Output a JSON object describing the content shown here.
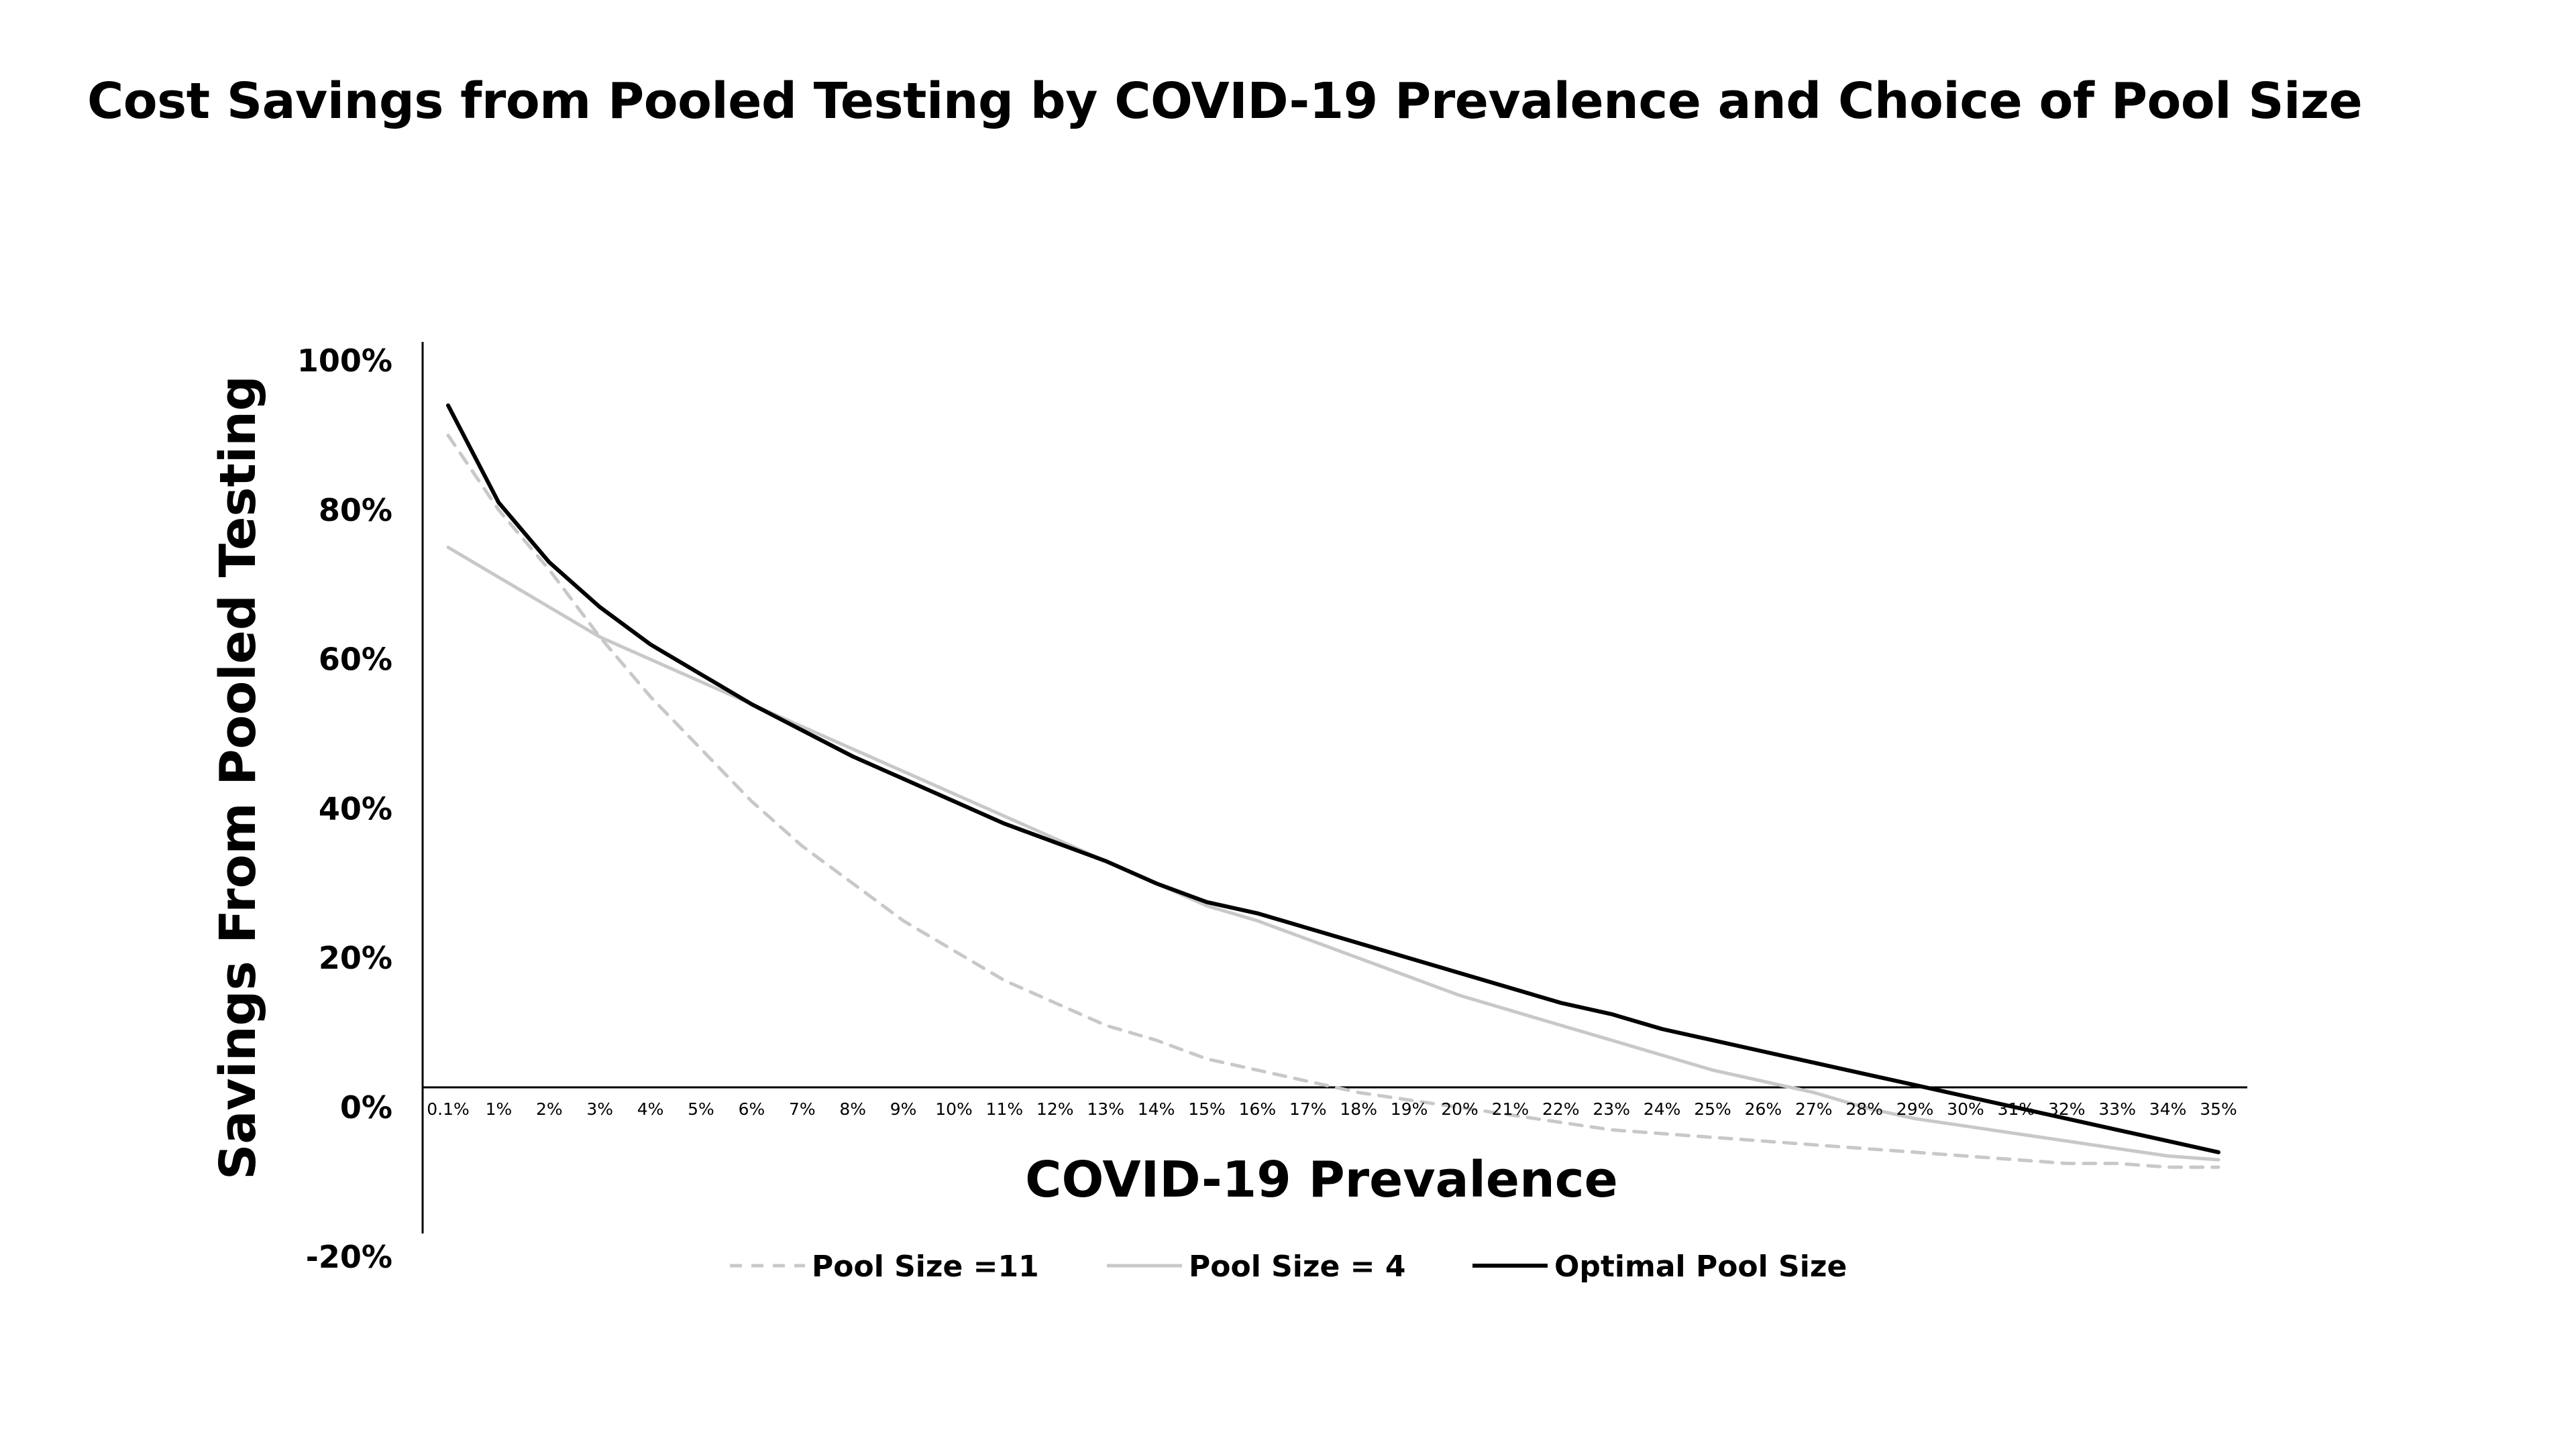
{
  "chart_data": {
    "type": "line",
    "title": "Cost Savings from Pooled Testing by COVID-19 Prevalence and Choice of Pool Size",
    "xlabel": "COVID-19 Prevalence",
    "ylabel": "Savings From Pooled Testing",
    "x": [
      "0.1%",
      "1%",
      "2%",
      "3%",
      "4%",
      "5%",
      "6%",
      "7%",
      "8%",
      "9%",
      "10%",
      "11%",
      "12%",
      "13%",
      "14%",
      "15%",
      "16%",
      "17%",
      "18%",
      "19%",
      "20%",
      "21%",
      "22%",
      "23%",
      "24%",
      "25%",
      "26%",
      "27%",
      "28%",
      "29%",
      "30%",
      "31%",
      "32%",
      "33%",
      "34%",
      "35%"
    ],
    "ylim": [
      -0.2,
      1.0
    ],
    "yticks": [
      "-20%",
      "0%",
      "20%",
      "40%",
      "60%",
      "80%",
      "100%"
    ],
    "ytick_values": [
      -0.2,
      0.0,
      0.2,
      0.4,
      0.6,
      0.8,
      1.0
    ],
    "grid": false,
    "legend_position": "bottom",
    "series": [
      {
        "name": "Pool Size =11",
        "color": "#c8c8c8",
        "dash": "dashed",
        "values": [
          0.9,
          0.8,
          0.72,
          0.63,
          0.55,
          0.48,
          0.41,
          0.35,
          0.3,
          0.25,
          0.21,
          0.17,
          0.14,
          0.11,
          0.09,
          0.065,
          0.05,
          0.035,
          0.02,
          0.01,
          0.0,
          -0.01,
          -0.02,
          -0.03,
          -0.035,
          -0.04,
          -0.045,
          -0.05,
          -0.055,
          -0.06,
          -0.065,
          -0.07,
          -0.075,
          -0.075,
          -0.08,
          -0.08
        ]
      },
      {
        "name": "Pool Size = 4",
        "color": "#c8c8c8",
        "dash": "solid",
        "values": [
          0.75,
          0.71,
          0.67,
          0.63,
          0.6,
          0.57,
          0.54,
          0.51,
          0.48,
          0.45,
          0.42,
          0.39,
          0.36,
          0.33,
          0.3,
          0.27,
          0.25,
          0.225,
          0.2,
          0.175,
          0.15,
          0.13,
          0.11,
          0.09,
          0.07,
          0.05,
          0.035,
          0.02,
          0.0,
          -0.015,
          -0.025,
          -0.035,
          -0.045,
          -0.055,
          -0.065,
          -0.07
        ]
      },
      {
        "name": "Optimal Pool Size",
        "color": "#000000",
        "dash": "solid",
        "values": [
          0.94,
          0.81,
          0.73,
          0.67,
          0.62,
          0.58,
          0.54,
          0.505,
          0.47,
          0.44,
          0.41,
          0.38,
          0.355,
          0.33,
          0.3,
          0.275,
          0.26,
          0.24,
          0.22,
          0.2,
          0.18,
          0.16,
          0.14,
          0.125,
          0.105,
          0.09,
          0.075,
          0.06,
          0.045,
          0.03,
          0.015,
          0.0,
          -0.015,
          -0.03,
          -0.045,
          -0.06
        ]
      }
    ]
  }
}
